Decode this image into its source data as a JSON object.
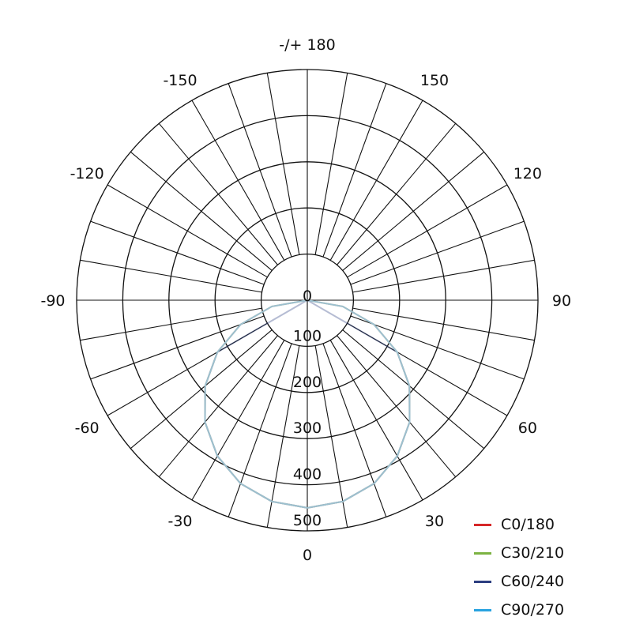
{
  "chart_data": {
    "type": "polar",
    "angle_labels": [
      {
        "angle": 180,
        "text": "-/+ 180"
      },
      {
        "angle": 150,
        "text": "150"
      },
      {
        "angle": -150,
        "text": "-150"
      },
      {
        "angle": 120,
        "text": "120"
      },
      {
        "angle": -120,
        "text": "-120"
      },
      {
        "angle": 90,
        "text": "90"
      },
      {
        "angle": -90,
        "text": "-90"
      },
      {
        "angle": 60,
        "text": "60"
      },
      {
        "angle": -60,
        "text": "-60"
      },
      {
        "angle": 30,
        "text": "30"
      },
      {
        "angle": -30,
        "text": "-30"
      },
      {
        "angle": 0,
        "text": "0"
      }
    ],
    "radial_ticks": [
      0,
      100,
      200,
      300,
      400,
      500
    ],
    "rlim": [
      0,
      500
    ],
    "angle_grid_step": 10,
    "angles": [
      -90,
      -80,
      -70,
      -60,
      -50,
      -40,
      -30,
      -20,
      -10,
      0,
      10,
      20,
      30,
      40,
      50,
      60,
      70,
      80,
      90
    ],
    "series": [
      {
        "name": "C0/180",
        "color": "#d62728",
        "values": [
          0,
          78,
          154,
          225,
          289,
          345,
          390,
          423,
          443,
          450,
          443,
          423,
          390,
          345,
          289,
          225,
          154,
          78,
          0
        ]
      },
      {
        "name": "C30/210",
        "color": "#7cb342",
        "values": [
          0,
          78,
          154,
          225,
          289,
          345,
          390,
          423,
          443,
          450,
          443,
          423,
          390,
          345,
          289,
          225,
          154,
          78,
          0
        ]
      },
      {
        "name": "C60/240",
        "color": "#2c3e80",
        "values": [
          0,
          0,
          0,
          225,
          289,
          345,
          390,
          423,
          443,
          450,
          443,
          423,
          390,
          345,
          289,
          225,
          0,
          0,
          0
        ]
      },
      {
        "name": "C90/270",
        "color": "#29a3e0",
        "values": [
          0,
          78,
          154,
          225,
          289,
          345,
          390,
          423,
          443,
          450,
          443,
          423,
          390,
          345,
          289,
          225,
          154,
          78,
          0
        ]
      }
    ],
    "legend_position": "bottom-right"
  }
}
